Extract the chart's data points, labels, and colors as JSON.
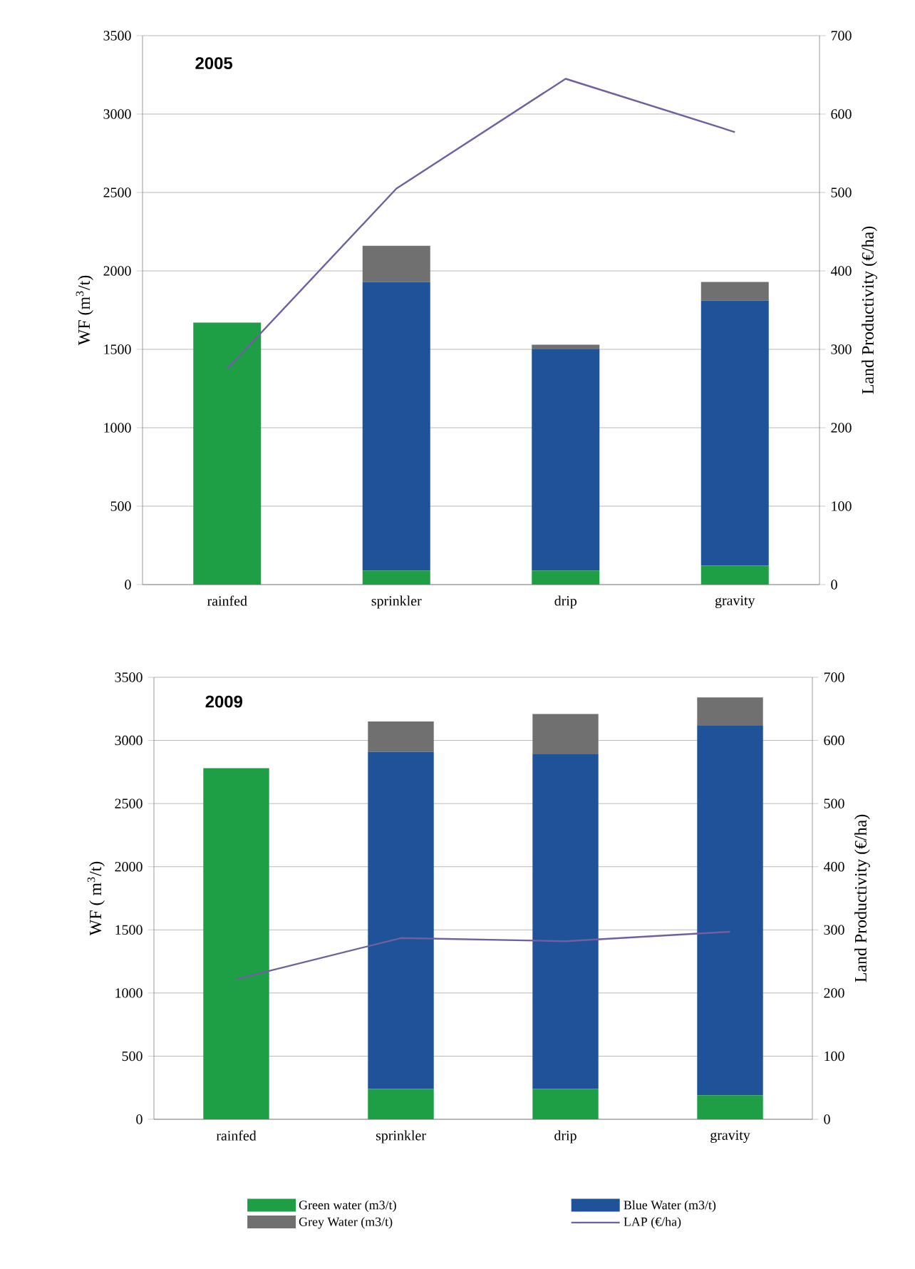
{
  "chart_data": [
    {
      "type": "bar",
      "title": "2005",
      "stacked": true,
      "categories": [
        "rainfed",
        "sprinkler",
        "drip",
        "gravity"
      ],
      "ylabel": "WF (m$^{3}$/t)",
      "y2label": "Land Productivity  (€/ha)",
      "ylim": [
        0,
        3500
      ],
      "yticks": [
        0,
        500,
        1000,
        1500,
        2000,
        2500,
        3000,
        3500
      ],
      "y2lim": [
        0,
        700
      ],
      "y2ticks": [
        0,
        100,
        200,
        300,
        400,
        500,
        600,
        700
      ],
      "grid": "y",
      "legend": false,
      "series": [
        {
          "color": "#1e9e45",
          "values": [
            1670,
            90,
            90,
            120
          ]
        },
        {
          "color": "#1f5298",
          "values": [
            0,
            1840,
            1410,
            1690
          ]
        },
        {
          "color": "#707070",
          "values": [
            0,
            230,
            30,
            120
          ]
        },
        {
          "type": "line",
          "axis": "y2",
          "color": "#7060a0",
          "values": [
            275,
            505,
            645,
            577
          ]
        }
      ]
    },
    {
      "type": "bar",
      "title": "2009",
      "stacked": true,
      "categories": [
        "rainfed",
        "sprinkler",
        "drip",
        "gravity"
      ],
      "ylabel": "WF ( m$^{3}$/t)",
      "y2label": "Land Productivity  (€/ha)",
      "ylim": [
        0,
        3500
      ],
      "yticks": [
        0,
        500,
        1000,
        1500,
        2000,
        2500,
        3000,
        3500
      ],
      "y2lim": [
        0,
        700
      ],
      "y2ticks": [
        0,
        100,
        200,
        300,
        400,
        500,
        600,
        700
      ],
      "grid": "y",
      "legend": "bottom",
      "series": [
        {
          "name": "Green water (m3/t)",
          "color": "#1e9e45",
          "values": [
            2780,
            240,
            240,
            190
          ]
        },
        {
          "name": "Blue Water (m3/t)",
          "color": "#1f5298",
          "values": [
            0,
            2670,
            2650,
            2930
          ]
        },
        {
          "name": "Grey Water (m3/t)",
          "color": "#707070",
          "values": [
            0,
            240,
            320,
            220
          ]
        },
        {
          "name": "LAP (€/ha)",
          "type": "line",
          "axis": "y2",
          "color": "#7060a0",
          "values": [
            222,
            287,
            282,
            297
          ]
        }
      ]
    }
  ]
}
